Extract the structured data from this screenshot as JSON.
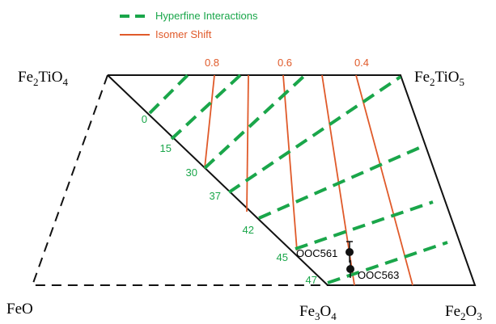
{
  "legend": {
    "hyperfine": "Hyperfine Interactions",
    "isomer": "Isomer Shift"
  },
  "corners": {
    "top_left": "Fe2TiO4",
    "top_right": "Fe2TiO5",
    "bottom_left": "FeO",
    "bottom_mid": "Fe3O4",
    "bottom_right": "Fe2O3"
  },
  "isomer_labels": [
    "0.8",
    "0.6",
    "0.4"
  ],
  "hyperfine_labels": [
    "0",
    "15",
    "30",
    "37",
    "42",
    "45",
    "47"
  ],
  "samples": [
    "OOC561",
    "OOC563"
  ]
}
